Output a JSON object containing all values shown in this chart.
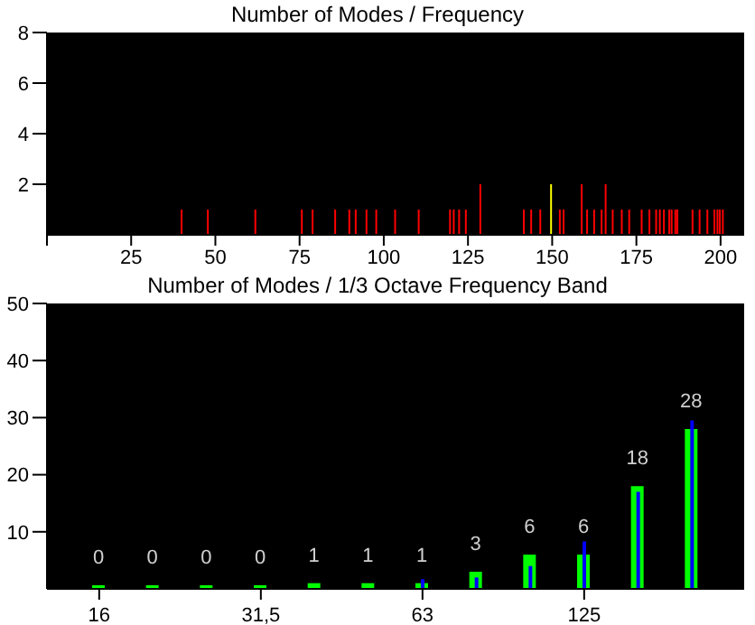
{
  "chart_data": [
    {
      "type": "bar",
      "title": "Number of Modes / Frequency",
      "x": [
        40.0,
        47.8,
        61.9,
        75.7,
        78.9,
        85.6,
        89.8,
        91.7,
        94.9,
        97.8,
        103.4,
        110.4,
        119.7,
        120.8,
        122.4,
        124.4,
        128.7,
        141.6,
        143.8,
        146.5,
        149.7,
        152.3,
        153.4,
        158.8,
        160.4,
        162.5,
        164.7,
        165.9,
        168.0,
        170.7,
        172.9,
        176.6,
        178.9,
        180.9,
        182.0,
        183.2,
        184.8,
        185.5,
        186.6,
        187.2,
        191.7,
        193.8,
        196.1,
        198.2,
        199.1,
        199.8,
        200.7
      ],
      "values": [
        1,
        1,
        1,
        1,
        1,
        1,
        1,
        1,
        1,
        1,
        1,
        1,
        1,
        1,
        1,
        1,
        2,
        1,
        1,
        1,
        2,
        1,
        1,
        2,
        1,
        1,
        1,
        2,
        1,
        1,
        1,
        1,
        1,
        1,
        1,
        1,
        1,
        1,
        1,
        1,
        1,
        1,
        1,
        1,
        1,
        1,
        1
      ],
      "colors": [
        "#ff0000",
        "#ff0000",
        "#ff0000",
        "#ff0000",
        "#ff0000",
        "#ff0000",
        "#ff0000",
        "#ff0000",
        "#ff0000",
        "#ff0000",
        "#ff0000",
        "#ff0000",
        "#ff0000",
        "#ff0000",
        "#ff0000",
        "#ff0000",
        "#ff0000",
        "#ff0000",
        "#ff0000",
        "#ff0000",
        "#ffff00",
        "#ff0000",
        "#ff0000",
        "#ff0000",
        "#ff0000",
        "#ff0000",
        "#ff0000",
        "#ff0000",
        "#ff0000",
        "#ff0000",
        "#ff0000",
        "#ff0000",
        "#ff0000",
        "#ff0000",
        "#ff0000",
        "#ff0000",
        "#ff0000",
        "#ff0000",
        "#ff0000",
        "#ff0000",
        "#ff0000",
        "#ff0000",
        "#ff0000",
        "#ff0000",
        "#ff0000",
        "#ff0000",
        "#ff0000"
      ],
      "xlim": [
        0,
        207
      ],
      "xticks": [
        {
          "value": 0,
          "label": null
        },
        25,
        50,
        75,
        100,
        125,
        150,
        175,
        200
      ],
      "ylim": [
        0,
        8
      ],
      "yticks": [
        2,
        4,
        6,
        8
      ]
    },
    {
      "type": "bar",
      "title": "Number of Modes / 1/3 Octave Frequency Band",
      "categories": [
        "16",
        null,
        null,
        "31,5",
        null,
        null,
        "63",
        null,
        null,
        "125",
        null,
        null
      ],
      "series": [
        {
          "color": "#00ff00",
          "values": [
            0,
            0,
            0,
            0,
            1,
            1,
            1,
            3,
            6,
            6,
            18,
            28
          ],
          "value_labels": [
            "0",
            "0",
            "0",
            "0",
            "1",
            "1",
            "1",
            "3",
            "6",
            "6",
            "18",
            "28"
          ]
        },
        {
          "color": "#0000ff",
          "values": [
            0,
            0,
            0,
            0,
            0,
            0,
            1.7,
            2,
            4,
            8.3,
            17,
            29.5
          ]
        }
      ],
      "ylim": [
        0,
        50
      ],
      "yticks": [
        10,
        20,
        30,
        40,
        50
      ]
    }
  ]
}
